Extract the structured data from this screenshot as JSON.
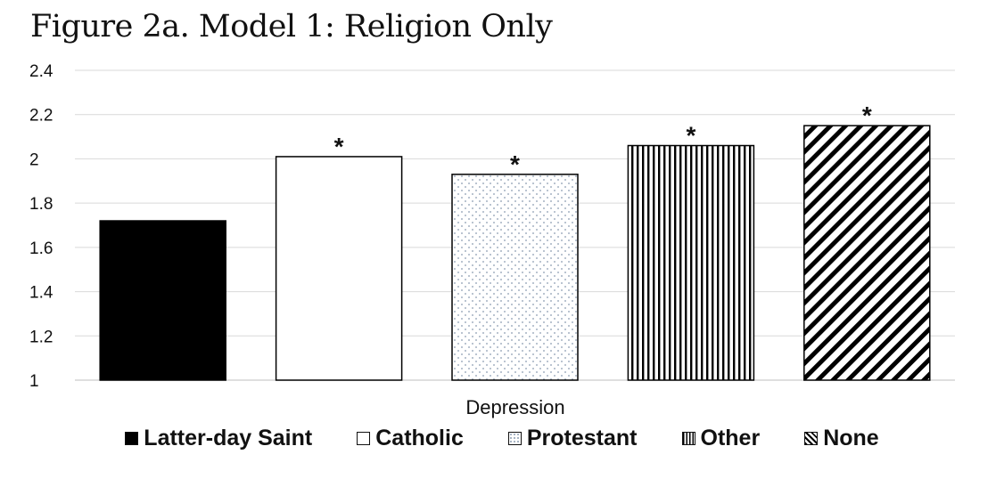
{
  "title": "Figure 2a. Model 1: Religion Only",
  "chart_data": {
    "type": "bar",
    "title": "Figure 2a. Model 1: Religion Only",
    "categories": [
      "Depression"
    ],
    "xlabel": "Depression",
    "ylabel": "",
    "ylim": [
      1,
      2.4
    ],
    "yticks": [
      "1",
      "1.2",
      "1.4",
      "1.6",
      "1.8",
      "2",
      "2.2",
      "2.4"
    ],
    "grid": true,
    "legend_position": "bottom",
    "series": [
      {
        "name": "Latter-day Saint",
        "values": [
          1.72
        ],
        "pattern": "solid-black",
        "significance": ""
      },
      {
        "name": "Catholic",
        "values": [
          2.01
        ],
        "pattern": "white",
        "significance": "*"
      },
      {
        "name": "Protestant",
        "values": [
          1.93
        ],
        "pattern": "dots",
        "significance": "*"
      },
      {
        "name": "Other",
        "values": [
          2.06
        ],
        "pattern": "vertical-stripes",
        "significance": "*"
      },
      {
        "name": "None",
        "values": [
          2.15
        ],
        "pattern": "diagonal-stripes",
        "significance": "*"
      }
    ]
  },
  "colors": {
    "black": "#000000",
    "grid": "#d9d9d9",
    "dots": "#8a9bb0"
  }
}
